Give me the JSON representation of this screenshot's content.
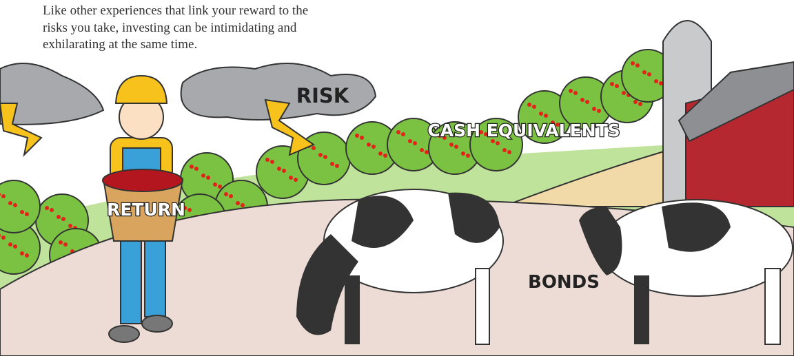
{
  "intro": {
    "lines": [
      "Like other experiences that link your reward to the",
      "risks you take, investing can be intimidating and",
      "exhilarating at the same time."
    ]
  },
  "labels": {
    "risk": "RISK",
    "cash_equivalents": "CASH EQUIVALENTS",
    "return": "RETURN",
    "bonds": "BONDS"
  }
}
